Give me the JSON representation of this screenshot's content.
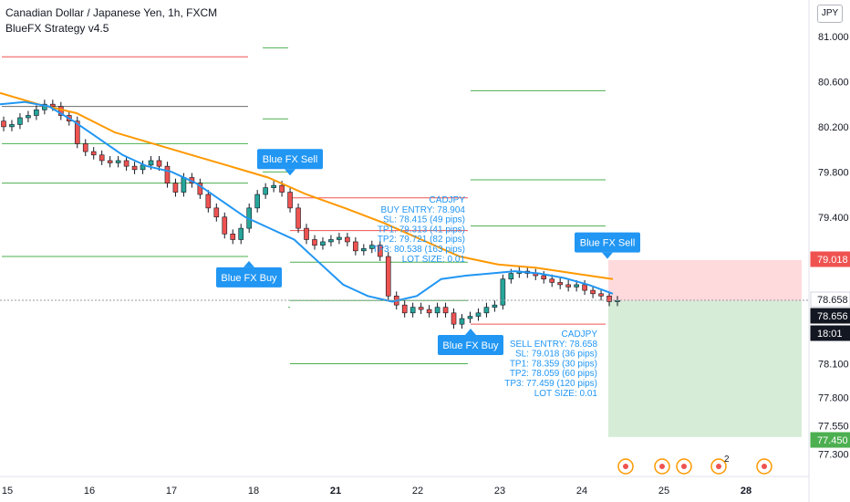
{
  "header": {
    "title": "Canadian Dollar / Japanese Yen, 1h, FXCM",
    "strategy": "BlueFX Strategy v4.5",
    "currency": "JPY"
  },
  "colors": {
    "up": "#26a69a",
    "down": "#ef5350",
    "candle": "#131722",
    "ema_fast": "#2196f3",
    "ema_slow": "#ff9800",
    "signal": "#2196f3",
    "sell_zone": "#ffcdd2",
    "buy_zone": "#c8e6c9"
  },
  "chart_data": {
    "type": "candlestick",
    "symbol": "CADJPY",
    "ylim": [
      77.15,
      81.2
    ],
    "y_ticks": [
      "81.000",
      "80.600",
      "80.200",
      "79.800",
      "79.400",
      "79.018",
      "78.658",
      "78.656",
      "78.100",
      "77.800",
      "77.550",
      "77.450",
      "77.300"
    ],
    "x_ticks": [
      {
        "label": "15",
        "bold": false
      },
      {
        "label": "16",
        "bold": false
      },
      {
        "label": "17",
        "bold": false
      },
      {
        "label": "18",
        "bold": false
      },
      {
        "label": "21",
        "bold": true
      },
      {
        "label": "22",
        "bold": false
      },
      {
        "label": "23",
        "bold": false
      },
      {
        "label": "24",
        "bold": false
      },
      {
        "label": "25",
        "bold": false
      },
      {
        "label": "28",
        "bold": true
      }
    ],
    "price_tags": [
      {
        "text": "79.018",
        "bg": "#ef5350",
        "fg": "#ffffff"
      },
      {
        "text": "78.658",
        "bg": "#ffffff",
        "fg": "#131722"
      },
      {
        "text": "78.656",
        "bg": "#131722",
        "fg": "#ffffff"
      },
      {
        "text": "18:01",
        "bg": "#131722",
        "fg": "#ffffff"
      },
      {
        "text": "77.450",
        "bg": "#4caf50",
        "fg": "#ffffff"
      }
    ],
    "countdown": "18:01",
    "candles_close": [
      80.2,
      80.22,
      80.28,
      80.3,
      80.35,
      80.4,
      80.38,
      80.3,
      80.25,
      80.05,
      79.98,
      79.95,
      79.9,
      79.88,
      79.9,
      79.85,
      79.82,
      79.86,
      79.9,
      79.85,
      79.7,
      79.62,
      79.75,
      79.7,
      79.6,
      79.48,
      79.4,
      79.25,
      79.2,
      79.3,
      79.48,
      79.6,
      79.66,
      79.68,
      79.62,
      79.48,
      79.3,
      79.2,
      79.15,
      79.18,
      79.2,
      79.22,
      79.18,
      79.1,
      79.12,
      79.15,
      79.05,
      78.7,
      78.62,
      78.55,
      78.6,
      78.58,
      78.55,
      78.6,
      78.55,
      78.45,
      78.5,
      78.52,
      78.55,
      78.6,
      78.62,
      78.85,
      78.9,
      78.92,
      78.9,
      78.88,
      78.85,
      78.82,
      78.8,
      78.78,
      78.8,
      78.75,
      78.72,
      78.7,
      78.65,
      78.66
    ],
    "ema_fast": [
      80.4,
      80.42,
      80.38,
      80.25,
      80.1,
      79.95,
      79.85,
      79.8,
      79.7,
      79.55,
      79.4,
      79.3,
      79.2,
      79.0,
      78.8,
      78.7,
      78.65,
      78.7,
      78.85,
      78.88,
      78.9,
      78.92,
      78.9,
      78.86,
      78.8,
      78.72
    ],
    "ema_slow": [
      80.5,
      80.4,
      80.32,
      80.15,
      80.05,
      79.95,
      79.85,
      79.75,
      79.6,
      79.48,
      79.35,
      79.2,
      79.05,
      78.98,
      78.95,
      78.9,
      78.85
    ],
    "signals": [
      {
        "label": "Blue FX Sell",
        "dir": "sell",
        "price": 79.72
      },
      {
        "label": "Blue FX Buy",
        "dir": "buy",
        "price": 79.1
      },
      {
        "label": "Blue FX Buy",
        "dir": "buy",
        "price": 78.5
      },
      {
        "label": "Blue FX Sell",
        "dir": "sell",
        "price": 78.98
      }
    ],
    "trades": [
      {
        "symbol": "CADJPY",
        "lines": [
          "BUY ENTRY: 78.904",
          "SL: 78.415 (49 pips)",
          "TP1: 79.313 (41 pips)",
          "TP2: 79.721 (82 pips)",
          "TP3: 80.538 (163 pips)",
          "LOT SIZE: 0.01"
        ]
      },
      {
        "symbol": "CADJPY",
        "lines": [
          "SELL ENTRY: 78.658",
          "SL: 79.018 (36 pips)",
          "TP1: 78.359 (30 pips)",
          "TP2: 78.059 (60 pips)",
          "TP3: 77.459 (120 pips)",
          "LOT SIZE: 0.01"
        ]
      }
    ],
    "event_badge": "2"
  }
}
